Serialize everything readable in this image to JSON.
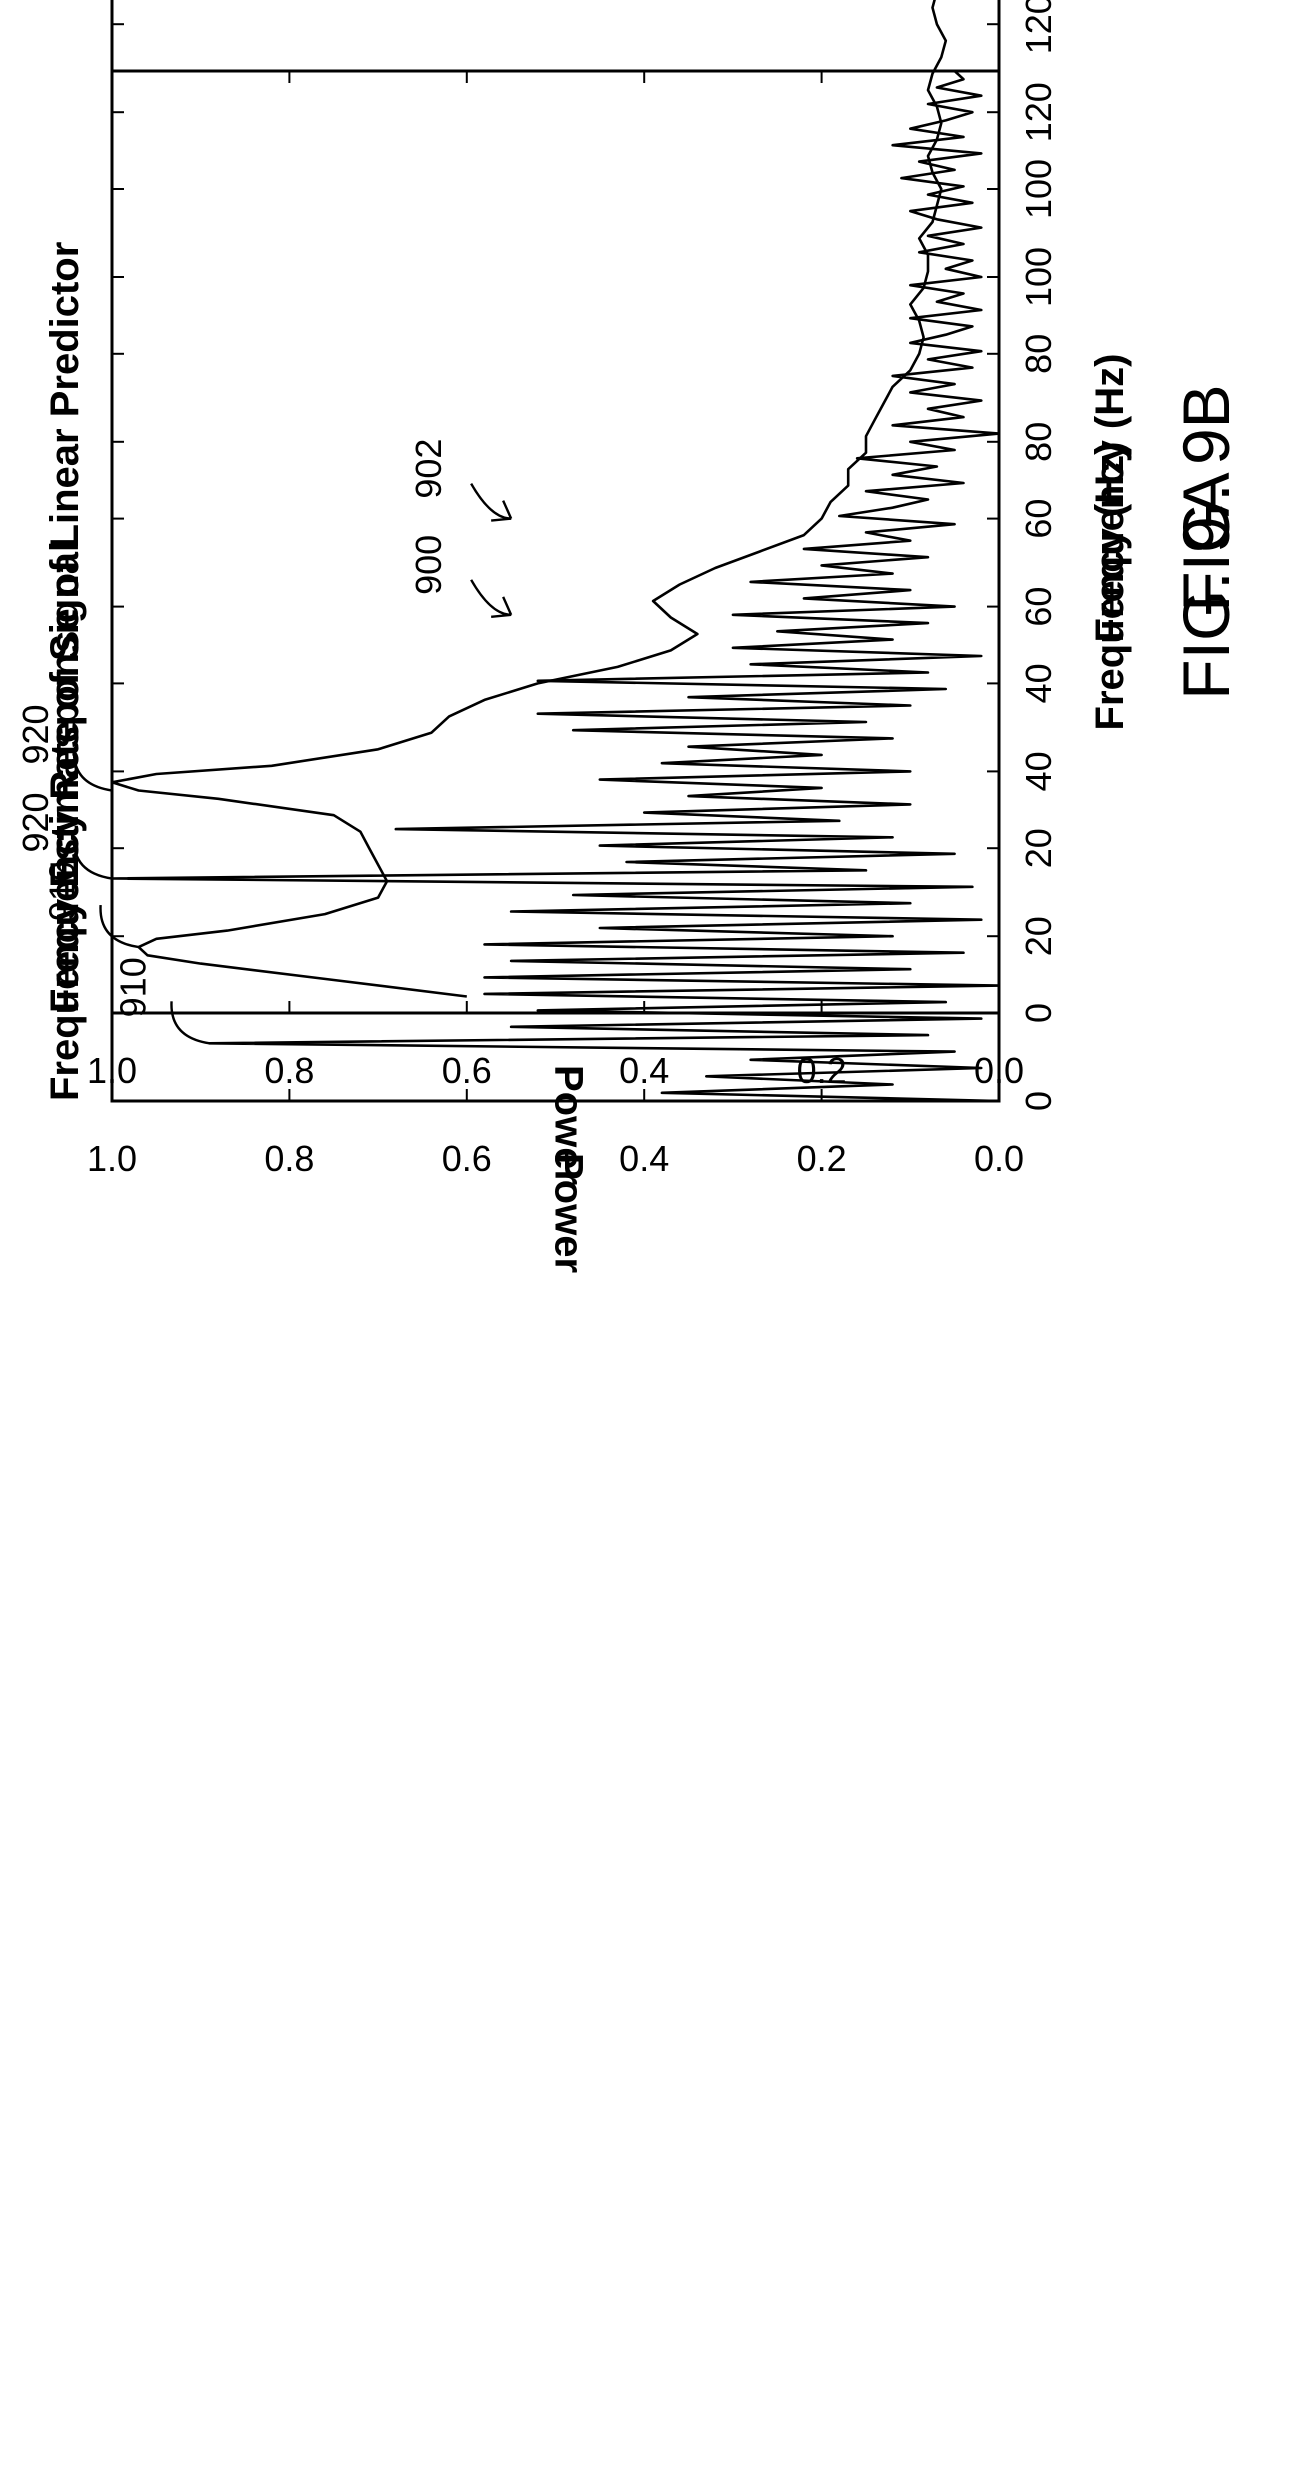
{
  "chart_data": [
    {
      "type": "line",
      "figure_label": "FIG. 9A",
      "title": "Frequency Estimate of Signal",
      "xlabel": "Frequency (Hz)",
      "ylabel": "Power",
      "xlim": [
        0,
        125
      ],
      "ylim": [
        0,
        1.0
      ],
      "xticks": [
        0,
        20,
        40,
        60,
        80,
        100,
        120
      ],
      "yticks": [
        0.0,
        0.2,
        0.4,
        0.6,
        0.8,
        1.0
      ],
      "xtick_labels": [
        "0",
        "20",
        "40",
        "60",
        "80",
        "100",
        "120"
      ],
      "ytick_labels": [
        "0.0",
        "0.2",
        "0.4",
        "0.6",
        "0.8",
        "1.0"
      ],
      "grid": false,
      "annotations": [
        {
          "label": "910",
          "x": 7,
          "y": 0.89
        },
        {
          "label": "920",
          "x": 27,
          "y": 1.0
        },
        {
          "label": "900",
          "x": 59,
          "y": 0.55
        }
      ],
      "series": [
        {
          "x": [
            0,
            1,
            2,
            3,
            4,
            5,
            6,
            7,
            8,
            9,
            10,
            11,
            12,
            13,
            14,
            15,
            16,
            17,
            18,
            19,
            20,
            21,
            22,
            23,
            24,
            25,
            26,
            27,
            28,
            29,
            30,
            31,
            32,
            33,
            34,
            35,
            36,
            37,
            38,
            39,
            40,
            41,
            42,
            43,
            44,
            45,
            46,
            47,
            48,
            49,
            50,
            51,
            52,
            53,
            54,
            55,
            56,
            57,
            58,
            59,
            60,
            61,
            62,
            63,
            64,
            65,
            66,
            67,
            68,
            69,
            70,
            71,
            72,
            73,
            74,
            75,
            76,
            77,
            78,
            79,
            80,
            81,
            82,
            83,
            84,
            85,
            86,
            87,
            88,
            89,
            90,
            91,
            92,
            93,
            94,
            95,
            96,
            97,
            98,
            99,
            100,
            101,
            102,
            103,
            104,
            105,
            106,
            107,
            108,
            109,
            110,
            111,
            112,
            113,
            114,
            115,
            116,
            117,
            118,
            119,
            120,
            121,
            122,
            123,
            124,
            125
          ],
          "values": [
            0.0,
            0.38,
            0.12,
            0.33,
            0.02,
            0.28,
            0.05,
            0.89,
            0.08,
            0.55,
            0.02,
            0.52,
            0.06,
            0.58,
            0.0,
            0.58,
            0.1,
            0.55,
            0.04,
            0.58,
            0.12,
            0.45,
            0.02,
            0.55,
            0.1,
            0.48,
            0.03,
            1.0,
            0.15,
            0.42,
            0.05,
            0.45,
            0.12,
            0.68,
            0.18,
            0.4,
            0.1,
            0.35,
            0.2,
            0.45,
            0.1,
            0.38,
            0.2,
            0.35,
            0.12,
            0.48,
            0.15,
            0.52,
            0.1,
            0.35,
            0.06,
            0.52,
            0.08,
            0.28,
            0.02,
            0.3,
            0.12,
            0.25,
            0.08,
            0.3,
            0.05,
            0.22,
            0.1,
            0.28,
            0.12,
            0.2,
            0.08,
            0.22,
            0.1,
            0.15,
            0.05,
            0.18,
            0.12,
            0.08,
            0.15,
            0.04,
            0.12,
            0.07,
            0.16,
            0.05,
            0.1,
            0.0,
            0.12,
            0.04,
            0.08,
            0.02,
            0.1,
            0.05,
            0.12,
            0.03,
            0.08,
            0.02,
            0.1,
            0.06,
            0.03,
            0.1,
            0.02,
            0.07,
            0.04,
            0.1,
            0.02,
            0.06,
            0.03,
            0.09,
            0.04,
            0.08,
            0.02,
            0.07,
            0.1,
            0.03,
            0.08,
            0.04,
            0.11,
            0.05,
            0.09,
            0.02,
            0.12,
            0.04,
            0.1,
            0.06,
            0.03,
            0.08,
            0.02,
            0.07,
            0.04,
            0.05
          ]
        }
      ]
    },
    {
      "type": "line",
      "figure_label": "FIG. 9B",
      "title": "Frequency Response of Linear Predictor",
      "xlabel": "Frequency (Hz)",
      "ylabel": "Power",
      "xlim": [
        0,
        125
      ],
      "ylim": [
        0,
        1.0
      ],
      "xticks": [
        0,
        20,
        40,
        60,
        80,
        100,
        120
      ],
      "yticks": [
        0.0,
        0.2,
        0.4,
        0.6,
        0.8,
        1.0
      ],
      "xtick_labels": [
        "0",
        "20",
        "40",
        "60",
        "80",
        "100",
        "120"
      ],
      "ytick_labels": [
        "0.0",
        "0.2",
        "0.4",
        "0.6",
        "0.8",
        "1.0"
      ],
      "grid": false,
      "annotations": [
        {
          "label": "910",
          "x": 8,
          "y": 0.97
        },
        {
          "label": "920",
          "x": 27,
          "y": 1.0
        },
        {
          "label": "902",
          "x": 60,
          "y": 0.55
        }
      ],
      "series": [
        {
          "x": [
            2,
            4,
            6,
            7,
            8,
            9,
            10,
            12,
            14,
            16,
            18,
            20,
            22,
            24,
            26,
            27,
            28,
            29,
            30,
            32,
            34,
            36,
            38,
            40,
            42,
            44,
            46,
            48,
            50,
            52,
            54,
            56,
            58,
            60,
            62,
            64,
            66,
            68,
            70,
            72,
            74,
            76,
            78,
            80,
            82,
            84,
            86,
            88,
            90,
            92,
            94,
            96,
            98,
            100,
            102,
            104,
            106,
            108,
            110,
            112,
            114,
            116,
            118,
            120,
            122,
            124,
            125
          ],
          "values": [
            0.6,
            0.75,
            0.9,
            0.96,
            0.97,
            0.95,
            0.87,
            0.76,
            0.7,
            0.69,
            0.7,
            0.71,
            0.72,
            0.75,
            0.88,
            0.97,
            1.0,
            0.95,
            0.82,
            0.7,
            0.64,
            0.62,
            0.58,
            0.52,
            0.43,
            0.37,
            0.34,
            0.37,
            0.39,
            0.36,
            0.32,
            0.27,
            0.22,
            0.2,
            0.19,
            0.17,
            0.17,
            0.15,
            0.15,
            0.14,
            0.13,
            0.12,
            0.1,
            0.09,
            0.085,
            0.09,
            0.1,
            0.085,
            0.08,
            0.08,
            0.09,
            0.075,
            0.07,
            0.065,
            0.075,
            0.08,
            0.07,
            0.065,
            0.07,
            0.08,
            0.075,
            0.065,
            0.06,
            0.07,
            0.075,
            0.07,
            0.07
          ]
        }
      ]
    }
  ]
}
